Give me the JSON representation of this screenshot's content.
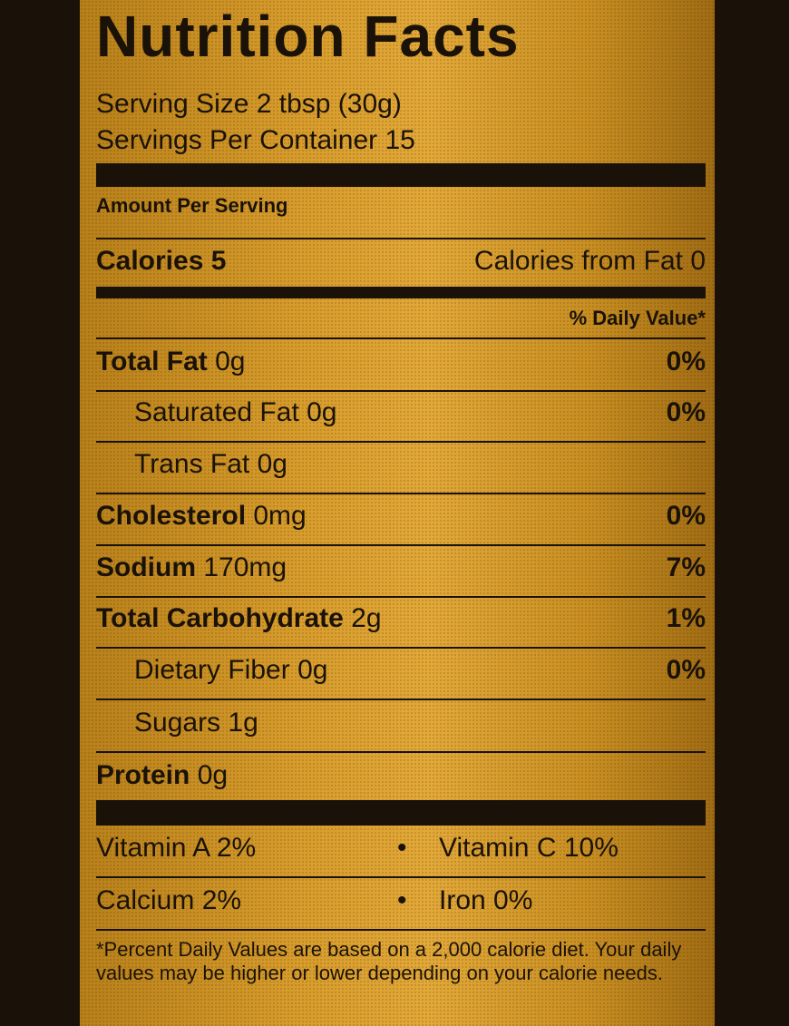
{
  "title": "Nutrition Facts",
  "serving_size": "Serving Size 2 tbsp (30g)",
  "servings_per_container": "Servings Per Container 15",
  "amount_per_serving": "Amount Per Serving",
  "calories": {
    "label": "Calories",
    "value": "5",
    "from_fat_label": "Calories from Fat",
    "from_fat_value": "0"
  },
  "daily_value_header": "% Daily Value*",
  "nutrients": [
    {
      "name": "Total Fat",
      "amount": "0g",
      "pct": "0%"
    },
    {
      "name": "Saturated Fat",
      "amount": "0g",
      "pct": "0%"
    },
    {
      "name": "Trans Fat",
      "amount": "0g",
      "pct": ""
    },
    {
      "name": "Cholesterol",
      "amount": "0mg",
      "pct": "0%"
    },
    {
      "name": "Sodium",
      "amount": "170mg",
      "pct": "7%"
    },
    {
      "name": "Total Carbohydrate",
      "amount": "2g",
      "pct": "1%"
    },
    {
      "name": "Dietary Fiber",
      "amount": "0g",
      "pct": "0%"
    },
    {
      "name": "Sugars",
      "amount": "1g",
      "pct": ""
    },
    {
      "name": "Protein",
      "amount": "0g",
      "pct": ""
    }
  ],
  "vitamins": {
    "vitamin_a": "Vitamin A 2%",
    "vitamin_c": "Vitamin C 10%",
    "calcium": "Calcium 2%",
    "iron": "Iron 0%",
    "bullet": "•"
  },
  "footnote": "*Percent Daily Values are based on a 2,000 calorie diet. Your daily values may be higher or lower depending on your calorie needs.",
  "colors": {
    "label_bg": "#d89d2c",
    "ink": "#1a1208"
  }
}
